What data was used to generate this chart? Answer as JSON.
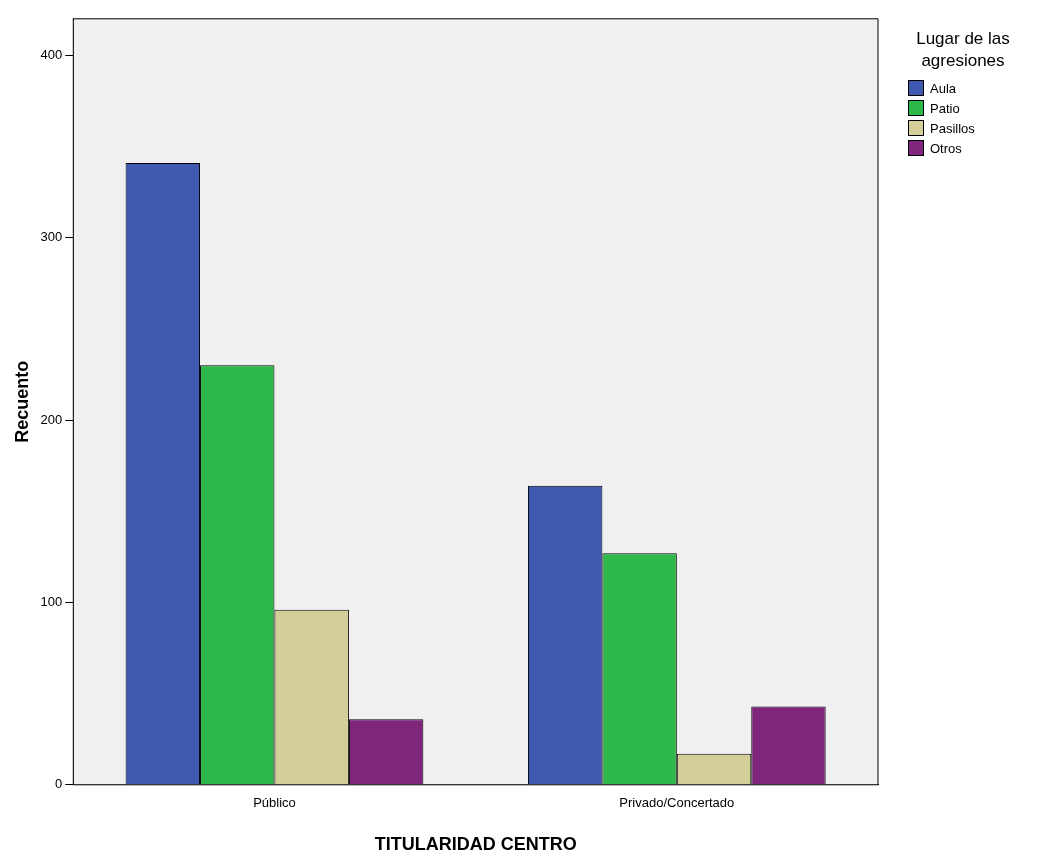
{
  "chart_data": {
    "type": "bar",
    "xlabel": "TITULARIDAD CENTRO",
    "ylabel": "Recuento",
    "legend_title": "Lugar de las agresiones",
    "categories": [
      "Público",
      "Privado/Concertado"
    ],
    "series": [
      {
        "name": "Aula",
        "color": "#3f59b0",
        "values": [
          341,
          164
        ]
      },
      {
        "name": "Patio",
        "color": "#2fb84a",
        "values": [
          230,
          127
        ]
      },
      {
        "name": "Pasillos",
        "color": "#d4cf98",
        "values": [
          96,
          17
        ]
      },
      {
        "name": "Otros",
        "color": "#7f267b",
        "values": [
          36,
          43
        ]
      }
    ],
    "ylim": [
      0,
      420
    ],
    "yticks": [
      0,
      100,
      200,
      300,
      400
    ],
    "grid": false,
    "legend": "top right"
  }
}
